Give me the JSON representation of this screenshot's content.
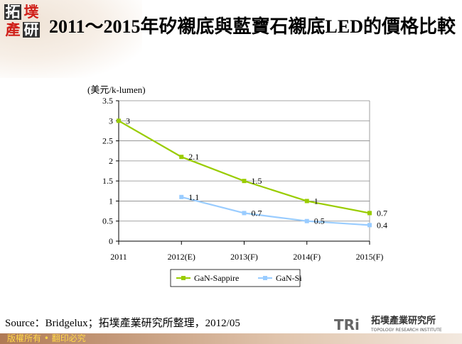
{
  "title": "2011～2015年矽襯底與藍寶石襯底LED的價格比較",
  "logo": {
    "chars": [
      "拓",
      "墣",
      "產",
      "研"
    ]
  },
  "source": "Source：Bridgelux；拓墣產業研究所整理，2012/05",
  "footer": {
    "copyright": "版權所有 • 翻印必究",
    "tri_name": "拓墣產業研究所",
    "tri_en": "TOPOLOGY RESEARCH INSTITUTE",
    "tri_mark": "TRi"
  },
  "chart_data": {
    "type": "line",
    "title": "",
    "ylabel": "(美元/k-lumen)",
    "xlabel": "",
    "categories": [
      "2011",
      "2012(E)",
      "2013(F)",
      "2014(F)",
      "2015(F)"
    ],
    "ylim": [
      0,
      3.5
    ],
    "yticks": [
      "0",
      "0.5",
      "1",
      "1.5",
      "2",
      "2.5",
      "3",
      "3.5"
    ],
    "grid": true,
    "legend": "bottom",
    "series": [
      {
        "name": "GaN-Sappire",
        "values": [
          3,
          2.1,
          1.5,
          1,
          0.7
        ],
        "labels": [
          "3",
          "2.1",
          "1.5",
          "1",
          "0.7"
        ],
        "color": "#99cc00"
      },
      {
        "name": "GaN-Si",
        "values": [
          null,
          1.1,
          0.7,
          0.5,
          0.4
        ],
        "labels": [
          "",
          "1.1",
          "0.7",
          "0.5",
          "0.4"
        ],
        "color": "#99ccff"
      }
    ]
  }
}
